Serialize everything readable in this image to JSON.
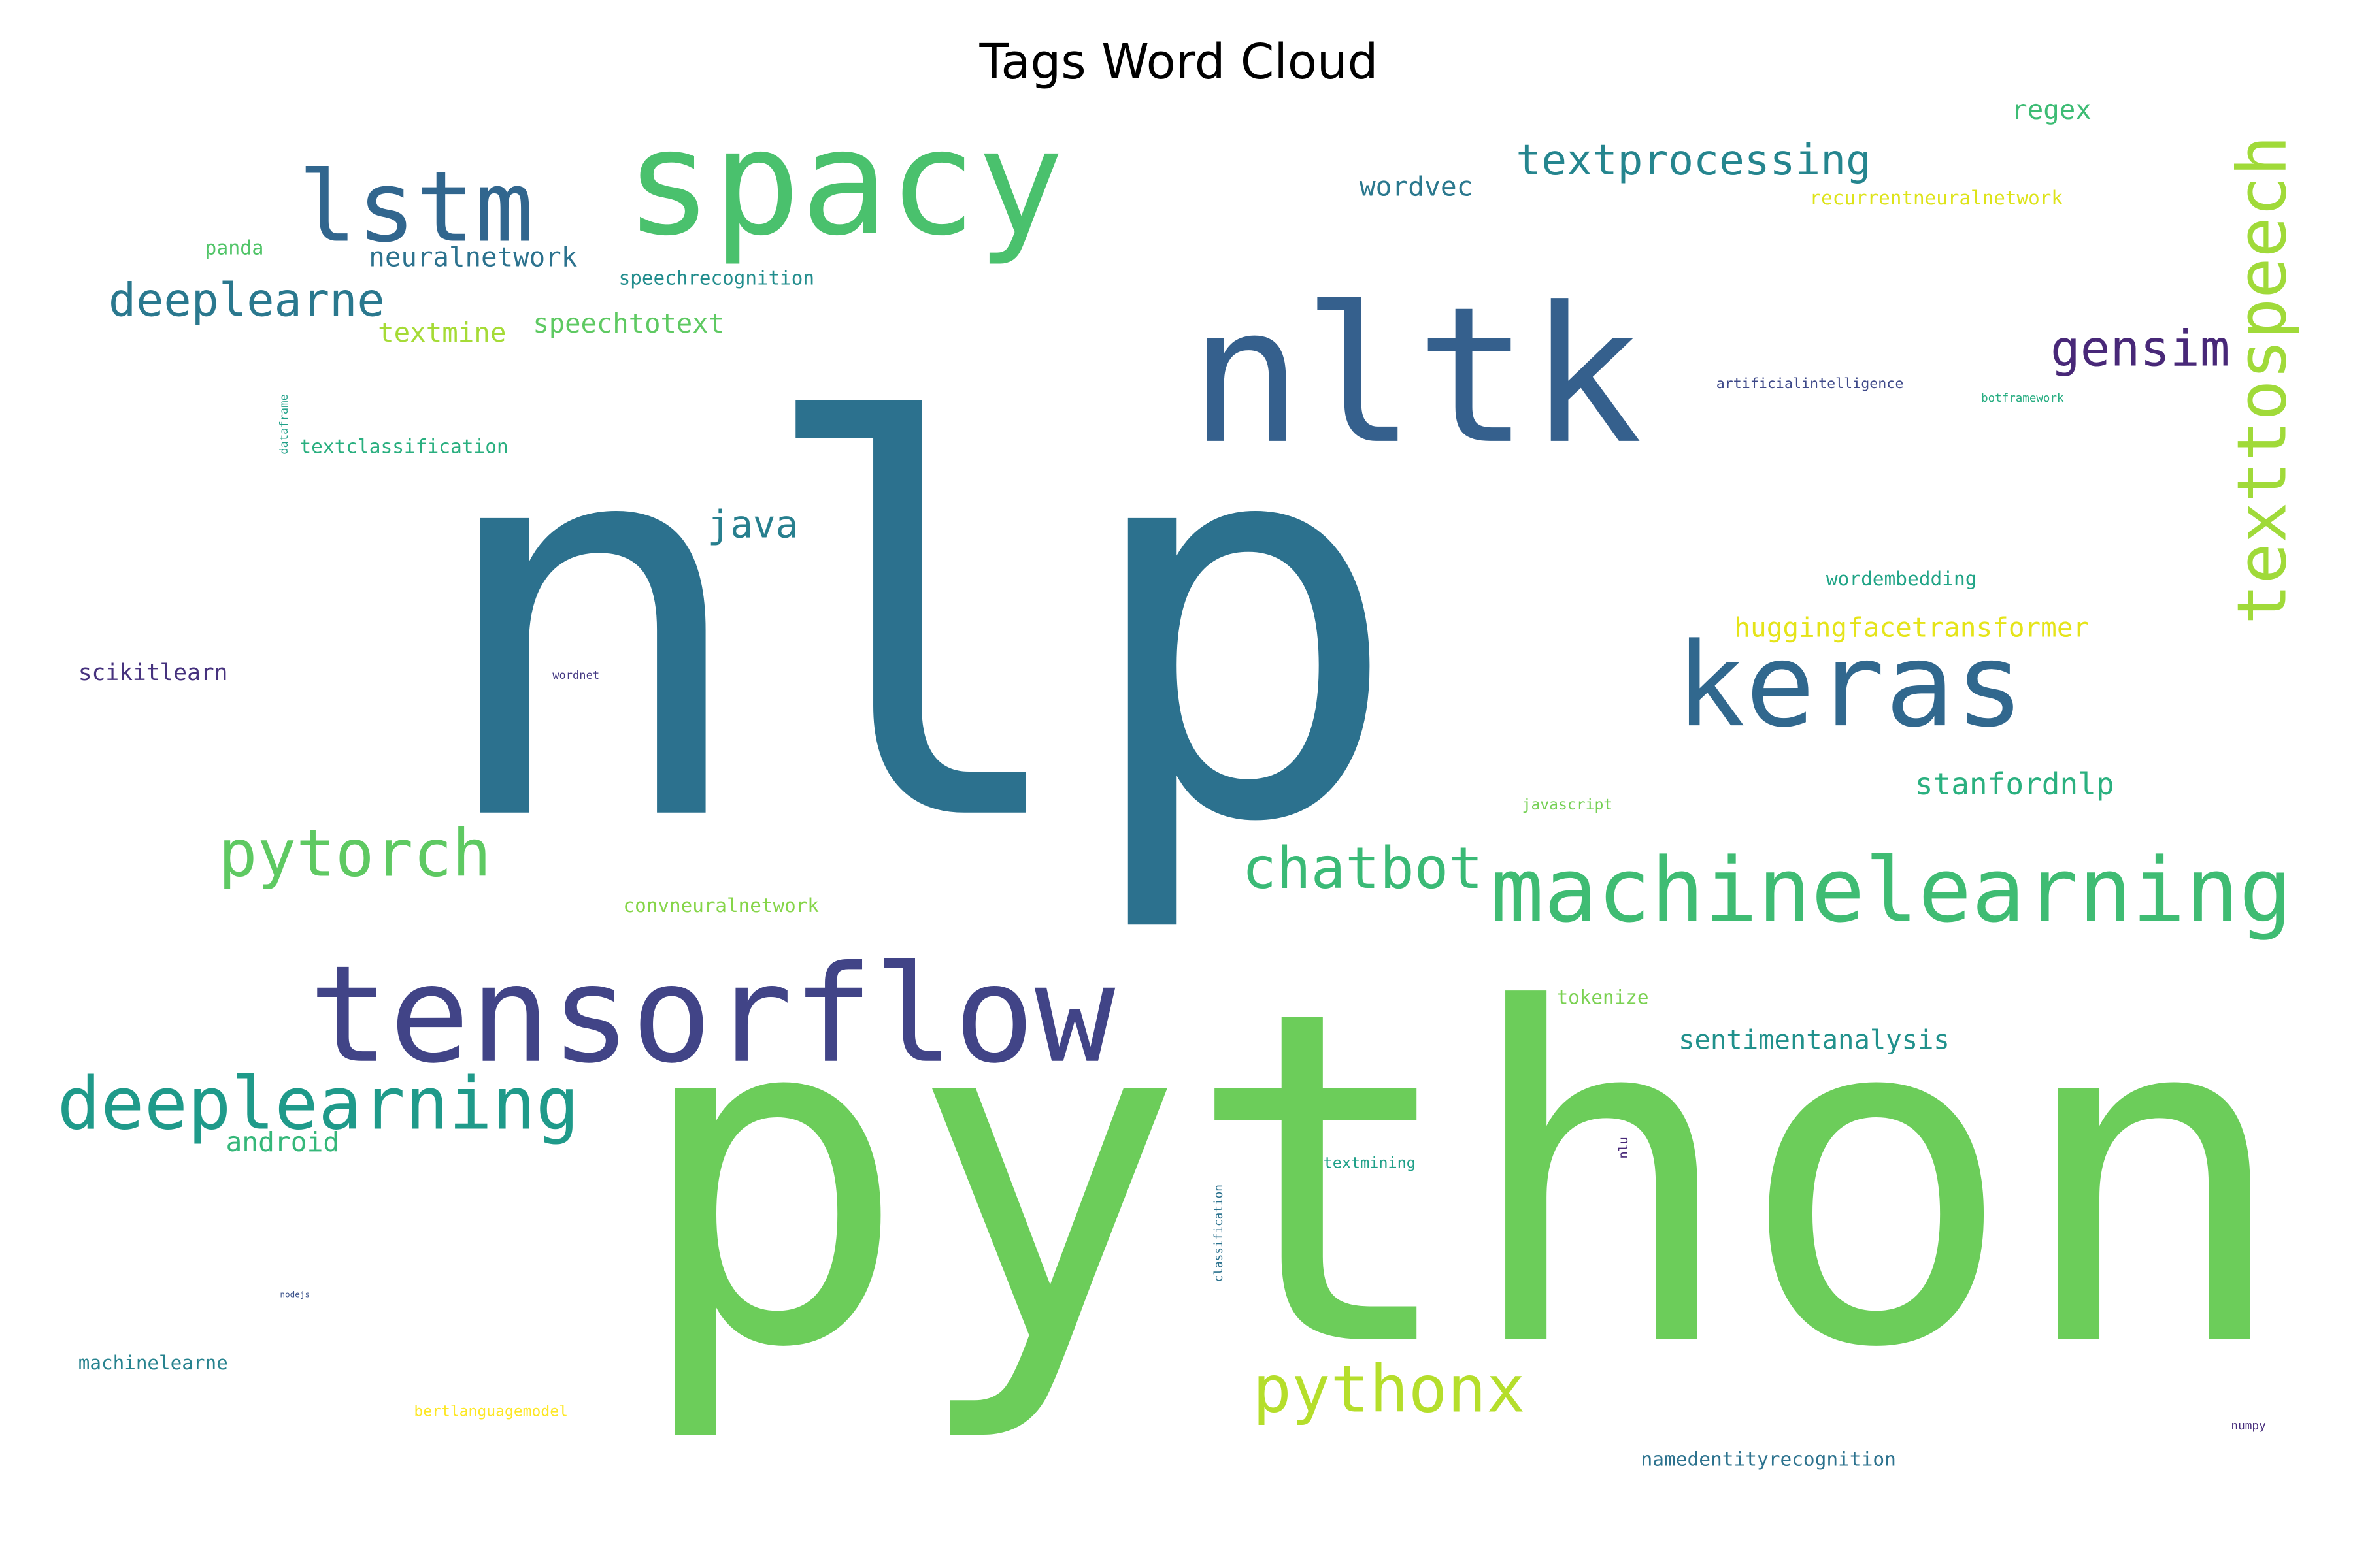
{
  "chart_data": {
    "type": "wordcloud",
    "title": "Tags Word Cloud",
    "words": [
      {
        "text": "nlp",
        "color": "#2c718e"
      },
      {
        "text": "python",
        "color": "#6ccd5a"
      },
      {
        "text": "nltk",
        "color": "#35608d"
      },
      {
        "text": "spacy",
        "color": "#4ac16d"
      },
      {
        "text": "lstm",
        "color": "#31668e"
      },
      {
        "text": "keras",
        "color": "#31688e"
      },
      {
        "text": "tensorflow",
        "color": "#414487"
      },
      {
        "text": "machinelearning",
        "color": "#3fbc73"
      },
      {
        "text": "deeplearning",
        "color": "#1f9a8a"
      },
      {
        "text": "pytorch",
        "color": "#5ec962"
      },
      {
        "text": "chatbot",
        "color": "#3aba76"
      },
      {
        "text": "pythonx",
        "color": "#b5de2b"
      },
      {
        "text": "texttospeech",
        "color": "#a0da39"
      },
      {
        "text": "gensim",
        "color": "#482878"
      },
      {
        "text": "textprocessing",
        "color": "#25858e"
      },
      {
        "text": "deeplearne",
        "color": "#2a788e"
      },
      {
        "text": "java",
        "color": "#277f8e"
      },
      {
        "text": "stanfordnlp",
        "color": "#2ab07f"
      },
      {
        "text": "sentimentanalysis",
        "color": "#21918c"
      },
      {
        "text": "huggingfacetransformer",
        "color": "#e5e419"
      },
      {
        "text": "neuralnetwork",
        "color": "#2c728e"
      },
      {
        "text": "speechtotext",
        "color": "#5ec962"
      },
      {
        "text": "textmine",
        "color": "#a5db36"
      },
      {
        "text": "wordvec",
        "color": "#2a788e"
      },
      {
        "text": "regex",
        "color": "#3dbc74"
      },
      {
        "text": "android",
        "color": "#35b779"
      },
      {
        "text": "scikitlearn",
        "color": "#46327e"
      },
      {
        "text": "textclassification",
        "color": "#29af7f"
      },
      {
        "text": "speechrecognition",
        "color": "#228d8d"
      },
      {
        "text": "panda",
        "color": "#52c569"
      },
      {
        "text": "recurrentneuralnetwork",
        "color": "#dde318"
      },
      {
        "text": "wordembedding",
        "color": "#20a486"
      },
      {
        "text": "convneuralnetwork",
        "color": "#86d549"
      },
      {
        "text": "tokenize",
        "color": "#7ad151"
      },
      {
        "text": "textmining",
        "color": "#1fa088"
      },
      {
        "text": "machinelearne",
        "color": "#26828e"
      },
      {
        "text": "bertlanguagemodel",
        "color": "#fde725"
      },
      {
        "text": "namedentityrecognition",
        "color": "#2c728e"
      },
      {
        "text": "artificialintelligence",
        "color": "#3e4989"
      },
      {
        "text": "botframework",
        "color": "#27ad81"
      },
      {
        "text": "javascript",
        "color": "#75d054"
      },
      {
        "text": "wordnet",
        "color": "#443983"
      },
      {
        "text": "nodejs",
        "color": "#3b528b"
      },
      {
        "text": "numpy",
        "color": "#472d7b"
      },
      {
        "text": "dataframe",
        "color": "#1fa088"
      },
      {
        "text": "classification",
        "color": "#2c728e"
      },
      {
        "text": "nlu",
        "color": "#482878"
      }
    ]
  }
}
